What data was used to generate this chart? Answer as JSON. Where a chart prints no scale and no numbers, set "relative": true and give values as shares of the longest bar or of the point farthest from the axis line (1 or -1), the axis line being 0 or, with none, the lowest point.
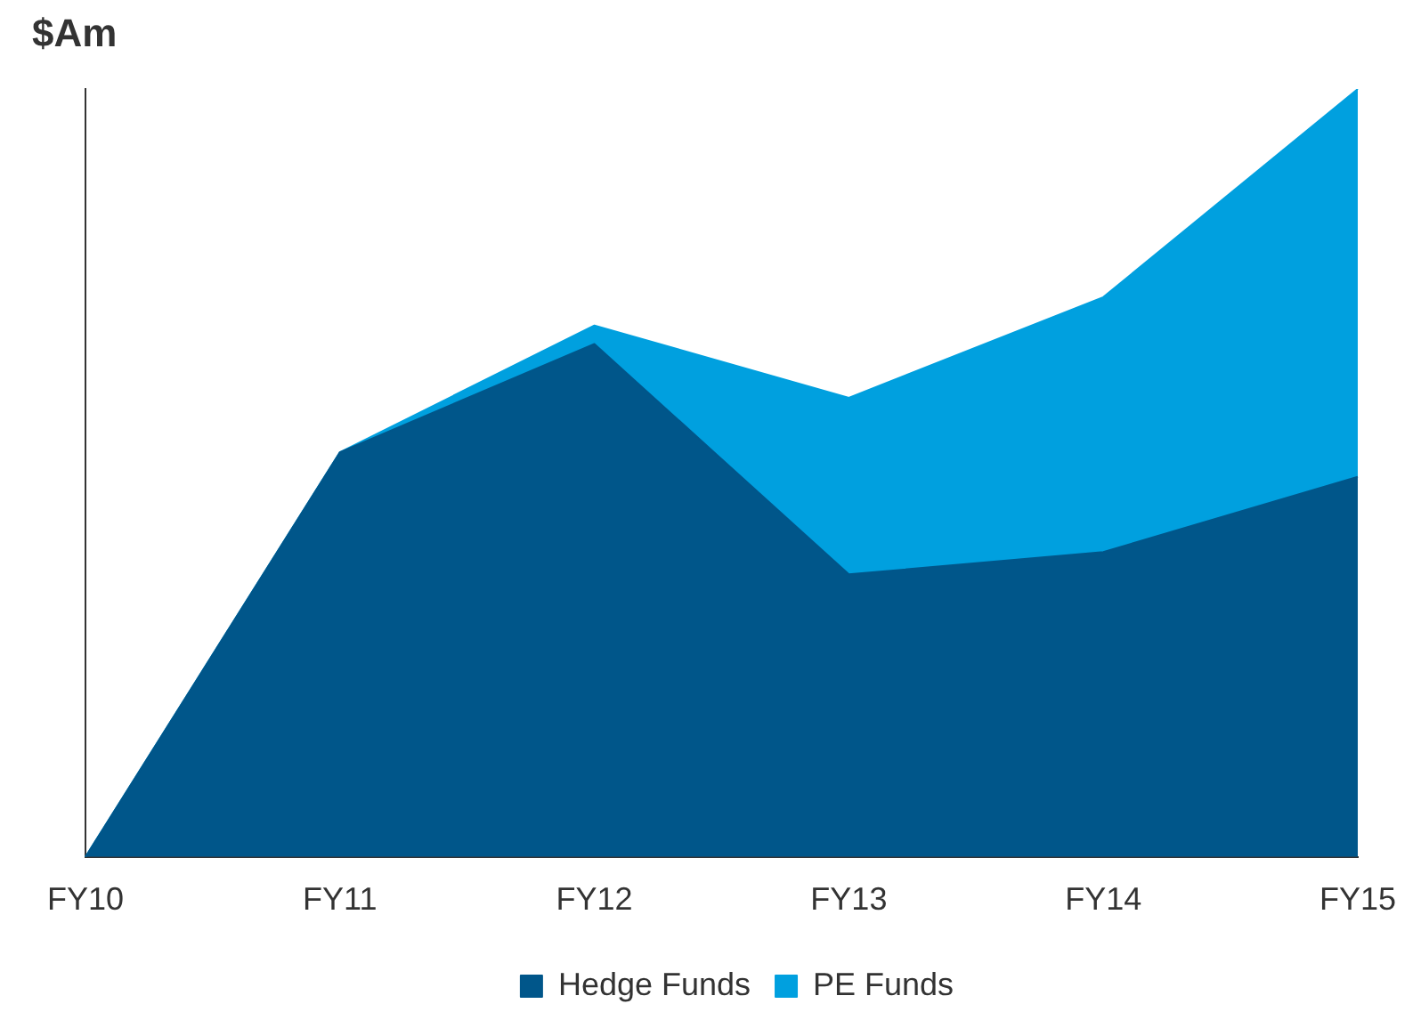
{
  "chart_data": {
    "type": "area",
    "stacked": true,
    "relative": true,
    "ylabel": "$Am",
    "categories": [
      "FY10",
      "FY11",
      "FY12",
      "FY13",
      "FY14",
      "FY15"
    ],
    "legend": "bottom",
    "grid": false,
    "series": [
      {
        "name": "Hedge Funds",
        "color": "#00568a",
        "values": [
          0,
          0.527,
          0.668,
          0.368,
          0.397,
          0.495
        ]
      },
      {
        "name": "PE Funds",
        "color": "#00a0df",
        "values": [
          0,
          0,
          0.024,
          0.23,
          0.332,
          0.505
        ]
      }
    ]
  }
}
